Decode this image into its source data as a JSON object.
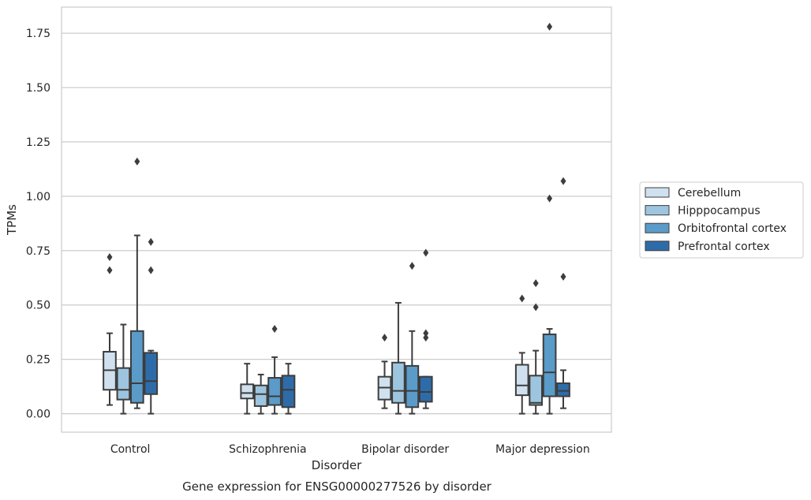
{
  "chart_data": {
    "type": "box",
    "title": "Gene expression for ENSG00000277526 by disorder",
    "xlabel": "Disorder",
    "ylabel": "TPMs",
    "ylim": [
      -0.085,
      1.87
    ],
    "yticks": [
      0.0,
      0.25,
      0.5,
      0.75,
      1.0,
      1.25,
      1.5,
      1.75
    ],
    "ytick_labels": [
      "0.00",
      "0.25",
      "0.50",
      "0.75",
      "1.00",
      "1.25",
      "1.50",
      "1.75"
    ],
    "grid": true,
    "legend_position": "right",
    "categories": [
      "Control",
      "Schizophrenia",
      "Bipolar disorder",
      "Major depression"
    ],
    "series": [
      {
        "name": "Cerebellum",
        "color": "#d0e0ef",
        "boxes": [
          {
            "whisker_low": 0.04,
            "q1": 0.11,
            "median": 0.2,
            "q3": 0.285,
            "whisker_high": 0.37,
            "outliers": [
              0.66,
              0.72
            ]
          },
          {
            "whisker_low": 0.0,
            "q1": 0.07,
            "median": 0.095,
            "q3": 0.135,
            "whisker_high": 0.23,
            "outliers": []
          },
          {
            "whisker_low": 0.025,
            "q1": 0.065,
            "median": 0.12,
            "q3": 0.17,
            "whisker_high": 0.24,
            "outliers": [
              0.35
            ]
          },
          {
            "whisker_low": 0.0,
            "q1": 0.085,
            "median": 0.13,
            "q3": 0.225,
            "whisker_high": 0.28,
            "outliers": [
              0.53
            ]
          }
        ]
      },
      {
        "name": "Hipppocampus",
        "color": "#9ec5df",
        "boxes": [
          {
            "whisker_low": 0.0,
            "q1": 0.065,
            "median": 0.11,
            "q3": 0.21,
            "whisker_high": 0.41,
            "outliers": []
          },
          {
            "whisker_low": 0.0,
            "q1": 0.035,
            "median": 0.09,
            "q3": 0.13,
            "whisker_high": 0.18,
            "outliers": []
          },
          {
            "whisker_low": 0.0,
            "q1": 0.05,
            "median": 0.105,
            "q3": 0.235,
            "whisker_high": 0.51,
            "outliers": []
          },
          {
            "whisker_low": 0.0,
            "q1": 0.04,
            "median": 0.05,
            "q3": 0.175,
            "whisker_high": 0.29,
            "outliers": [
              0.49,
              0.6
            ]
          }
        ]
      },
      {
        "name": "Orbitofrontal cortex",
        "color": "#5a9bc9",
        "boxes": [
          {
            "whisker_low": 0.025,
            "q1": 0.05,
            "median": 0.14,
            "q3": 0.38,
            "whisker_high": 0.82,
            "outliers": [
              1.16
            ]
          },
          {
            "whisker_low": 0.0,
            "q1": 0.04,
            "median": 0.08,
            "q3": 0.165,
            "whisker_high": 0.26,
            "outliers": [
              0.39
            ]
          },
          {
            "whisker_low": 0.0,
            "q1": 0.03,
            "median": 0.105,
            "q3": 0.22,
            "whisker_high": 0.38,
            "outliers": [
              0.68
            ]
          },
          {
            "whisker_low": 0.0,
            "q1": 0.08,
            "median": 0.19,
            "q3": 0.365,
            "whisker_high": 0.39,
            "outliers": [
              0.99,
              1.78
            ]
          }
        ]
      },
      {
        "name": "Prefrontal cortex",
        "color": "#2e6ca9",
        "boxes": [
          {
            "whisker_low": 0.0,
            "q1": 0.09,
            "median": 0.15,
            "q3": 0.28,
            "whisker_high": 0.29,
            "outliers": [
              0.66,
              0.79
            ]
          },
          {
            "whisker_low": 0.0,
            "q1": 0.03,
            "median": 0.11,
            "q3": 0.175,
            "whisker_high": 0.23,
            "outliers": []
          },
          {
            "whisker_low": 0.025,
            "q1": 0.055,
            "median": 0.1,
            "q3": 0.17,
            "whisker_high": 0.17,
            "outliers": [
              0.35,
              0.37,
              0.74
            ]
          },
          {
            "whisker_low": 0.025,
            "q1": 0.08,
            "median": 0.105,
            "q3": 0.14,
            "whisker_high": 0.2,
            "outliers": [
              0.63,
              1.07
            ]
          }
        ]
      }
    ]
  }
}
